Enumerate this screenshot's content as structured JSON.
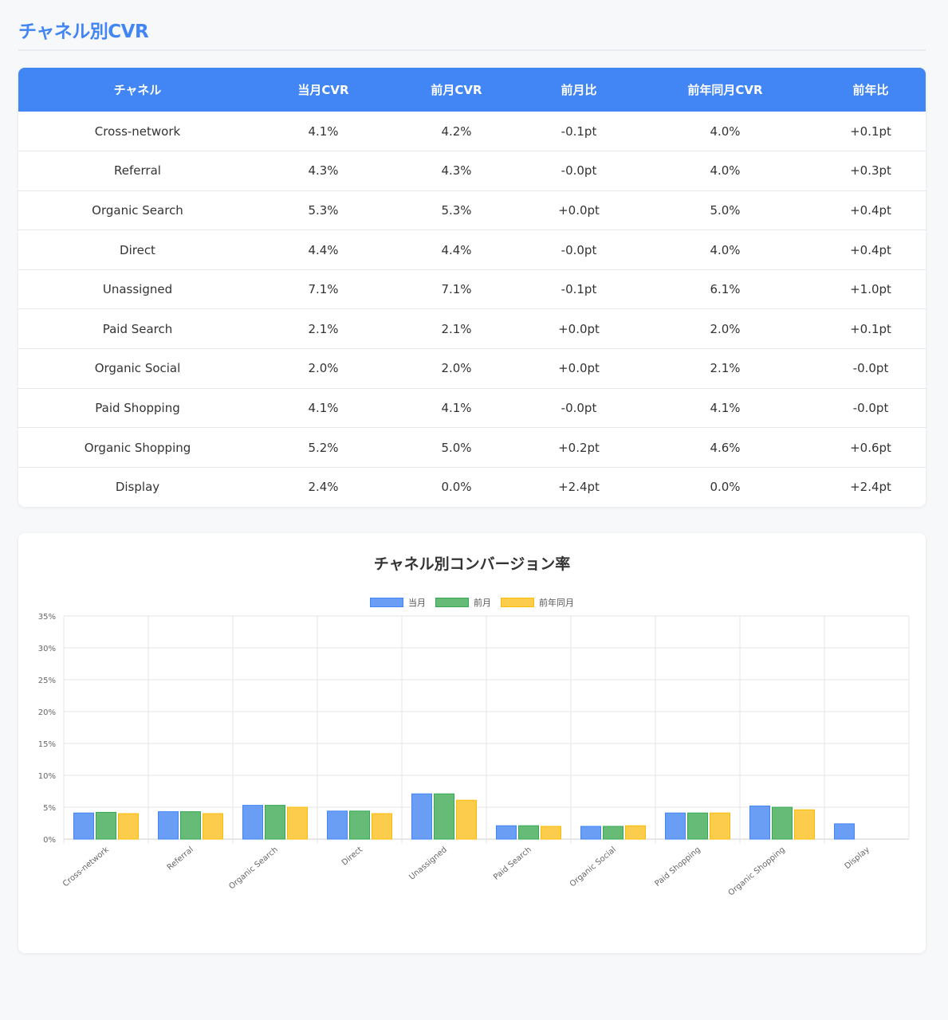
{
  "page": {
    "title": "チャネル別CVR"
  },
  "table": {
    "headers": [
      "チャネル",
      "当月CVR",
      "前月CVR",
      "前月比",
      "前年同月CVR",
      "前年比"
    ],
    "rows": [
      [
        "Cross-network",
        "4.1%",
        "4.2%",
        "-0.1pt",
        "4.0%",
        "+0.1pt"
      ],
      [
        "Referral",
        "4.3%",
        "4.3%",
        "-0.0pt",
        "4.0%",
        "+0.3pt"
      ],
      [
        "Organic Search",
        "5.3%",
        "5.3%",
        "+0.0pt",
        "5.0%",
        "+0.4pt"
      ],
      [
        "Direct",
        "4.4%",
        "4.4%",
        "-0.0pt",
        "4.0%",
        "+0.4pt"
      ],
      [
        "Unassigned",
        "7.1%",
        "7.1%",
        "-0.1pt",
        "6.1%",
        "+1.0pt"
      ],
      [
        "Paid Search",
        "2.1%",
        "2.1%",
        "+0.0pt",
        "2.0%",
        "+0.1pt"
      ],
      [
        "Organic Social",
        "2.0%",
        "2.0%",
        "+0.0pt",
        "2.1%",
        "-0.0pt"
      ],
      [
        "Paid Shopping",
        "4.1%",
        "4.1%",
        "-0.0pt",
        "4.1%",
        "-0.0pt"
      ],
      [
        "Organic Shopping",
        "5.2%",
        "5.0%",
        "+0.2pt",
        "4.6%",
        "+0.6pt"
      ],
      [
        "Display",
        "2.4%",
        "0.0%",
        "+2.4pt",
        "0.0%",
        "+2.4pt"
      ]
    ]
  },
  "chart_data": {
    "type": "bar",
    "title": "チャネル別コンバージョン率",
    "categories": [
      "Cross-network",
      "Referral",
      "Organic Search",
      "Direct",
      "Unassigned",
      "Paid Search",
      "Organic Social",
      "Paid Shopping",
      "Organic Shopping",
      "Display"
    ],
    "series": [
      {
        "name": "当月",
        "values": [
          4.1,
          4.3,
          5.3,
          4.4,
          7.1,
          2.1,
          2.0,
          4.1,
          5.2,
          2.4
        ],
        "fill": "#6a9ef5",
        "stroke": "#4285f4"
      },
      {
        "name": "前月",
        "values": [
          4.2,
          4.3,
          5.3,
          4.4,
          7.1,
          2.1,
          2.0,
          4.1,
          5.0,
          0.0
        ],
        "fill": "#66bb77",
        "stroke": "#34a853"
      },
      {
        "name": "前年同月",
        "values": [
          4.0,
          4.0,
          5.0,
          4.0,
          6.1,
          2.0,
          2.1,
          4.1,
          4.6,
          0.0
        ],
        "fill": "#fccc4d",
        "stroke": "#fbbc04"
      }
    ],
    "yticks": [
      "0%",
      "5%",
      "10%",
      "15%",
      "20%",
      "25%",
      "30%",
      "35%"
    ],
    "ylim": [
      0,
      35
    ],
    "legend_position": "top",
    "grid": true
  }
}
